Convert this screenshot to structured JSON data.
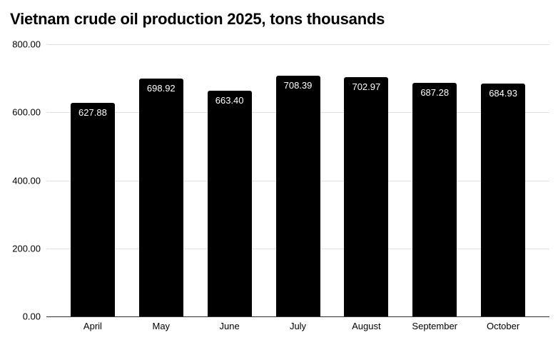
{
  "chart_data": {
    "type": "bar",
    "title": "Vietnam crude oil production 2025, tons thousands",
    "categories": [
      "April",
      "May",
      "June",
      "July",
      "August",
      "September",
      "October"
    ],
    "values": [
      627.88,
      698.92,
      663.4,
      708.39,
      702.97,
      687.28,
      684.93
    ],
    "value_labels": [
      "627.88",
      "698.92",
      "663.40",
      "708.39",
      "702.97",
      "687.28",
      "684.93"
    ],
    "xlabel": "",
    "ylabel": "",
    "ylim": [
      0,
      800
    ],
    "ytick_labels": [
      "800.00",
      "600.00",
      "400.00",
      "200.00",
      "0.00"
    ],
    "ytick_values": [
      800,
      600,
      400,
      200,
      0
    ],
    "grid": true,
    "legend_position": "none",
    "bar_color": "#000000",
    "bar_label_color": "#ffffff",
    "gridline_color": "#e0e0e0",
    "axis_line_color": "#333333",
    "background_color": "#ffffff"
  }
}
